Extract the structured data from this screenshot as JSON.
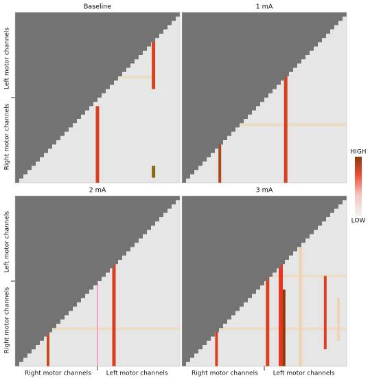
{
  "panels": [
    {
      "title": "Baseline",
      "ylabels": [
        "Left motor channels",
        "Right motor channels"
      ]
    },
    {
      "title": "1 mA"
    },
    {
      "title": "2 mA",
      "ylabels": [
        "Left motor channels",
        "Right motor channels"
      ],
      "xlabels": [
        "Right motor channels",
        "Left motor channels"
      ]
    },
    {
      "title": "3 mA",
      "xlabels": [
        "Right motor channels",
        "Left motor channels"
      ]
    }
  ],
  "colorbar": {
    "high": "HIGH",
    "low": "LOW"
  }
}
